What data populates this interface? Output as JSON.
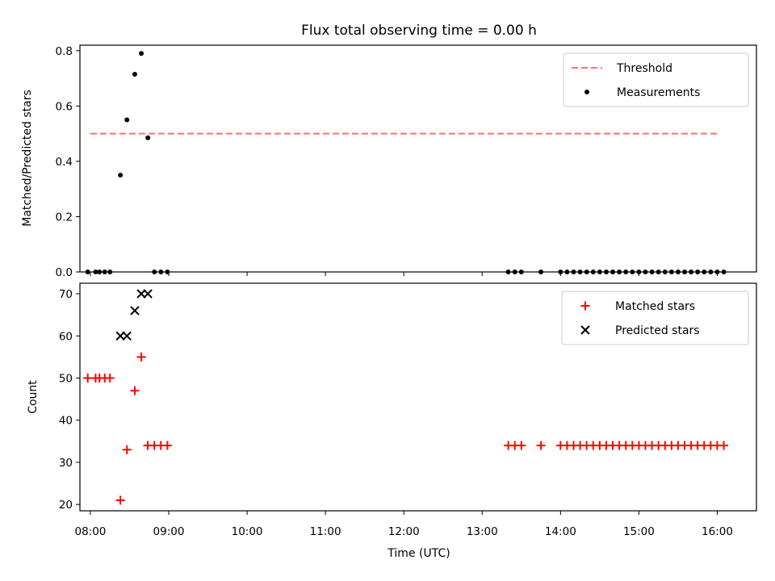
{
  "title": "Flux total observing time = 0.00 h",
  "top_ylabel": "Matched/Predicted stars",
  "bottom_ylabel": "Count",
  "xlabel": "Time (UTC)",
  "colors": {
    "threshold": "#ff7070",
    "measurements": "#000000",
    "matched": "#ff0000",
    "predicted": "#000000"
  },
  "chart_data": [
    {
      "type": "scatter",
      "ylabel": "Matched/Predicted stars",
      "ylim": [
        0,
        0.82
      ],
      "yticks": [
        0.0,
        0.2,
        0.4,
        0.6,
        0.8
      ],
      "ytick_labels": [
        "0.0",
        "0.2",
        "0.4",
        "0.6",
        "0.8"
      ],
      "xlim": [
        "07:52",
        "16:30"
      ],
      "legend": {
        "position": "top-right",
        "entries": [
          "Threshold",
          "Measurements"
        ]
      },
      "series": [
        {
          "name": "Threshold",
          "kind": "dashed-line",
          "x": [
            "08:00",
            "16:00"
          ],
          "y": [
            0.5,
            0.5
          ]
        },
        {
          "name": "Measurements",
          "kind": "dots",
          "x": [
            "07:58",
            "08:04",
            "08:07",
            "08:11",
            "08:15",
            "08:23",
            "08:28",
            "08:34",
            "08:39",
            "08:44",
            "08:49",
            "08:54",
            "08:59",
            "13:20",
            "13:25",
            "13:30",
            "13:45",
            "14:00",
            "14:05",
            "14:10",
            "14:15",
            "14:20",
            "14:25",
            "14:30",
            "14:35",
            "14:40",
            "14:45",
            "14:50",
            "14:55",
            "15:00",
            "15:05",
            "15:10",
            "15:15",
            "15:20",
            "15:25",
            "15:30",
            "15:35",
            "15:40",
            "15:45",
            "15:50",
            "15:55",
            "16:00",
            "16:05"
          ],
          "y": [
            0,
            0,
            0,
            0,
            0,
            0.35,
            0.55,
            0.715,
            0.79,
            0.485,
            0,
            0,
            0,
            0,
            0,
            0,
            0,
            0,
            0,
            0,
            0,
            0,
            0,
            0,
            0,
            0,
            0,
            0,
            0,
            0,
            0,
            0,
            0,
            0,
            0,
            0,
            0,
            0,
            0,
            0,
            0,
            0,
            0
          ]
        }
      ]
    },
    {
      "type": "scatter",
      "ylabel": "Count",
      "xlabel": "Time (UTC)",
      "ylim": [
        18.5,
        72.5
      ],
      "yticks": [
        20,
        30,
        40,
        50,
        60,
        70
      ],
      "ytick_labels": [
        "20",
        "30",
        "40",
        "50",
        "60",
        "70"
      ],
      "xlim": [
        "07:52",
        "16:30"
      ],
      "xticks": [
        "08:00",
        "09:00",
        "10:00",
        "11:00",
        "12:00",
        "13:00",
        "14:00",
        "15:00",
        "16:00"
      ],
      "xtick_labels": [
        "08:00",
        "09:00",
        "10:00",
        "11:00",
        "12:00",
        "13:00",
        "14:00",
        "15:00",
        "16:00"
      ],
      "legend": {
        "position": "top-right",
        "entries": [
          "Matched stars",
          "Predicted stars"
        ]
      },
      "series": [
        {
          "name": "Matched stars",
          "marker": "+",
          "x": [
            "07:58",
            "08:04",
            "08:07",
            "08:11",
            "08:15",
            "08:23",
            "08:28",
            "08:34",
            "08:39",
            "08:44",
            "08:49",
            "08:54",
            "08:59",
            "13:20",
            "13:25",
            "13:30",
            "13:45",
            "14:00",
            "14:05",
            "14:10",
            "14:15",
            "14:20",
            "14:25",
            "14:30",
            "14:35",
            "14:40",
            "14:45",
            "14:50",
            "14:55",
            "15:00",
            "15:05",
            "15:10",
            "15:15",
            "15:20",
            "15:25",
            "15:30",
            "15:35",
            "15:40",
            "15:45",
            "15:50",
            "15:55",
            "16:00",
            "16:05"
          ],
          "y": [
            50,
            50,
            50,
            50,
            50,
            21,
            33,
            47,
            55,
            34,
            34,
            34,
            34,
            34,
            34,
            34,
            34,
            34,
            34,
            34,
            34,
            34,
            34,
            34,
            34,
            34,
            34,
            34,
            34,
            34,
            34,
            34,
            34,
            34,
            34,
            34,
            34,
            34,
            34,
            34,
            34,
            34,
            34
          ]
        },
        {
          "name": "Predicted stars",
          "marker": "x",
          "x": [
            "08:23",
            "08:28",
            "08:34",
            "08:39",
            "08:44"
          ],
          "y": [
            60,
            60,
            66,
            70,
            70
          ]
        }
      ]
    }
  ]
}
